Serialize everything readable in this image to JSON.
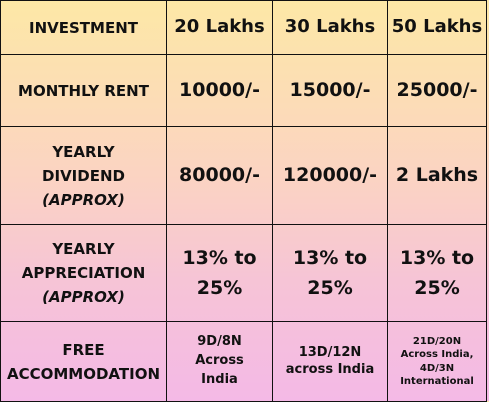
{
  "header": {
    "label": "INVESTMENT",
    "options": [
      "20 Lakhs",
      "30 Lakhs",
      "50 Lakhs"
    ]
  },
  "rows": [
    {
      "label_lines": [
        "MONTHLY RENT"
      ],
      "label_italic": "",
      "values": [
        "10000/-",
        "15000/-",
        "25000/-"
      ]
    },
    {
      "label_lines": [
        "YEARLY",
        "DIVIDEND"
      ],
      "label_italic": "(APPROX)",
      "values": [
        "80000/-",
        "120000/-",
        "2 Lakhs"
      ]
    },
    {
      "label_lines": [
        "YEARLY",
        "APPRECIATION"
      ],
      "label_italic": "(APPROX)",
      "values": [
        [
          "13% to",
          "25%"
        ],
        [
          "13% to",
          "25%"
        ],
        [
          "13% to",
          "25%"
        ]
      ]
    },
    {
      "label_lines": [
        "FREE",
        "ACCOMMODATION"
      ],
      "label_italic": "",
      "values": [
        [
          "9D/8N",
          "Across",
          "India"
        ],
        [
          "13D/12N",
          "across India"
        ],
        [
          "21D/20N",
          "Across India,",
          "4D/3N",
          "International"
        ]
      ]
    }
  ]
}
